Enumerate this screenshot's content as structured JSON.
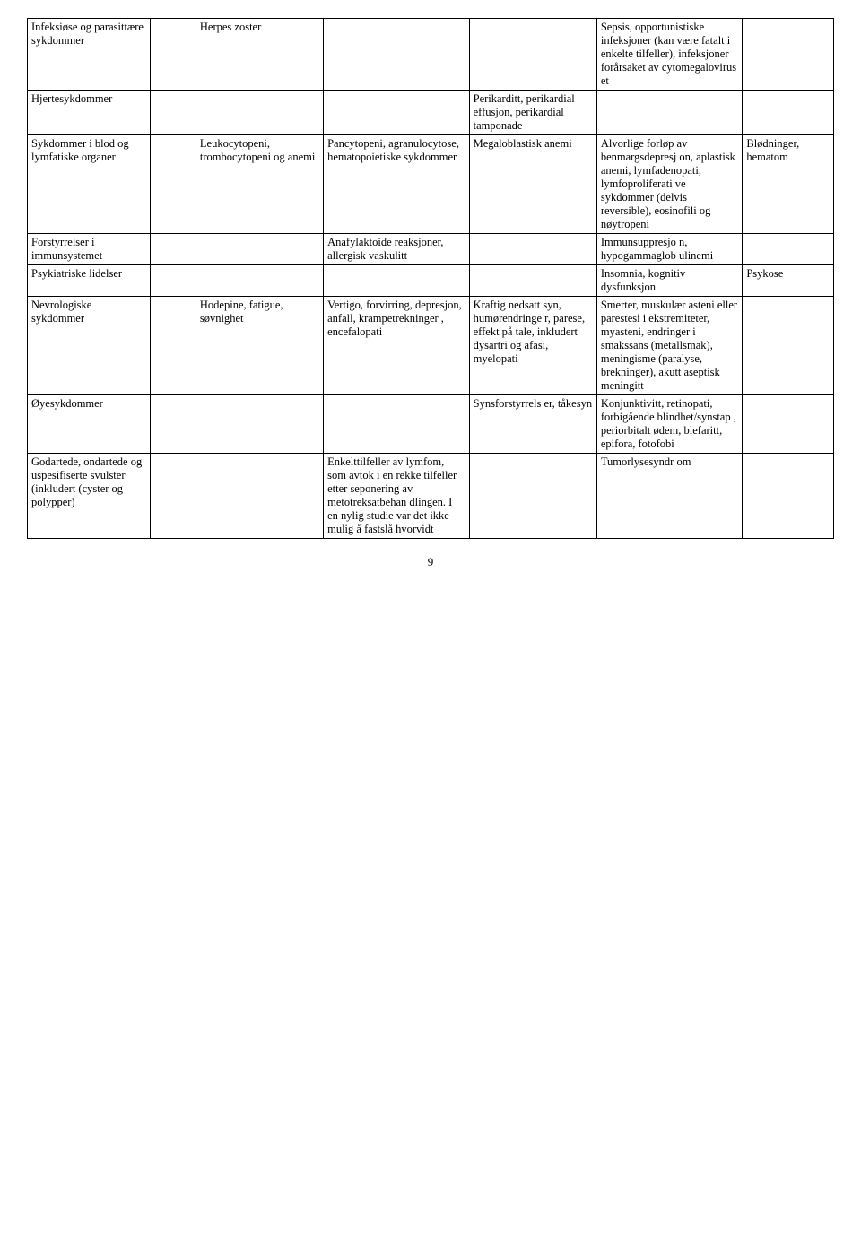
{
  "rows": [
    {
      "c0": "Infeksiøse og parasittære sykdommer",
      "c1": "",
      "c2": "Herpes zoster",
      "c3": "",
      "c4": "",
      "c5": "Sepsis, opportunistiske infeksjoner (kan være fatalt i enkelte tilfeller), infeksjoner forårsaket av cytomegalovirus et",
      "c6": ""
    },
    {
      "c0": "Hjertesykdommer",
      "c1": "",
      "c2": "",
      "c3": "",
      "c4": "Perikarditt, perikardial effusjon, perikardial tamponade",
      "c5": "",
      "c6": ""
    },
    {
      "c0": "Sykdommer i blod og lymfatiske organer",
      "c1": "",
      "c2": "Leukocytopeni, trombocytopeni og anemi",
      "c3": "Pancytopeni, agranulocytose, hematopoietiske sykdommer",
      "c4": "Megaloblastisk anemi",
      "c5": "Alvorlige forløp av benmargsdepresj on, aplastisk anemi, lymfadenopati, lymfoproliferati ve sykdommer (delvis reversible), eosinofili og nøytropeni",
      "c6": "Blødninger, hematom"
    },
    {
      "c0": "Forstyrrelser i immunsystemet",
      "c1": "",
      "c2": "",
      "c3": "Anafylaktoide reaksjoner, allergisk vaskulitt",
      "c4": "",
      "c5": "Immunsuppresjo n, hypogammaglob ulinemi",
      "c6": ""
    },
    {
      "c0": "Psykiatriske lidelser",
      "c1": "",
      "c2": "",
      "c3": "",
      "c4": "",
      "c5": "Insomnia, kognitiv dysfunksjon",
      "c6": "Psykose"
    },
    {
      "c0": "Nevrologiske sykdommer",
      "c1": "",
      "c2": "Hodepine, fatigue, søvnighet",
      "c3": "Vertigo, forvirring, depresjon, anfall, krampetrekninger , encefalopati",
      "c4": "Kraftig nedsatt syn, humørendringe r, parese, effekt på tale, inkludert dysartri og afasi, myelopati",
      "c5": "Smerter, muskulær asteni eller parestesi i ekstremiteter, myasteni, endringer i smakssans (metallsmak), meningisme (paralyse, brekninger), akutt aseptisk meningitt",
      "c6": ""
    },
    {
      "c0": "Øyesykdommer",
      "c1": "",
      "c2": "",
      "c3": "",
      "c4": "Synsforstyrrels er, tåkesyn",
      "c5": "Konjunktivitt, retinopati, forbigående blindhet/synstap , periorbitalt ødem, blefaritt, epifora, fotofobi",
      "c6": ""
    },
    {
      "c0": "Godartede, ondartede og uspesifiserte svulster (inkludert (cyster og polypper)",
      "c1": "",
      "c2": "",
      "c3": "Enkelttilfeller av lymfom, som avtok i en rekke tilfeller etter seponering av metotreksatbehan dlingen. I en nylig studie var det ikke mulig å fastslå hvorvidt",
      "c4": "",
      "c5": "Tumorlysesyndr om",
      "c6": ""
    }
  ],
  "pageNumber": "9"
}
